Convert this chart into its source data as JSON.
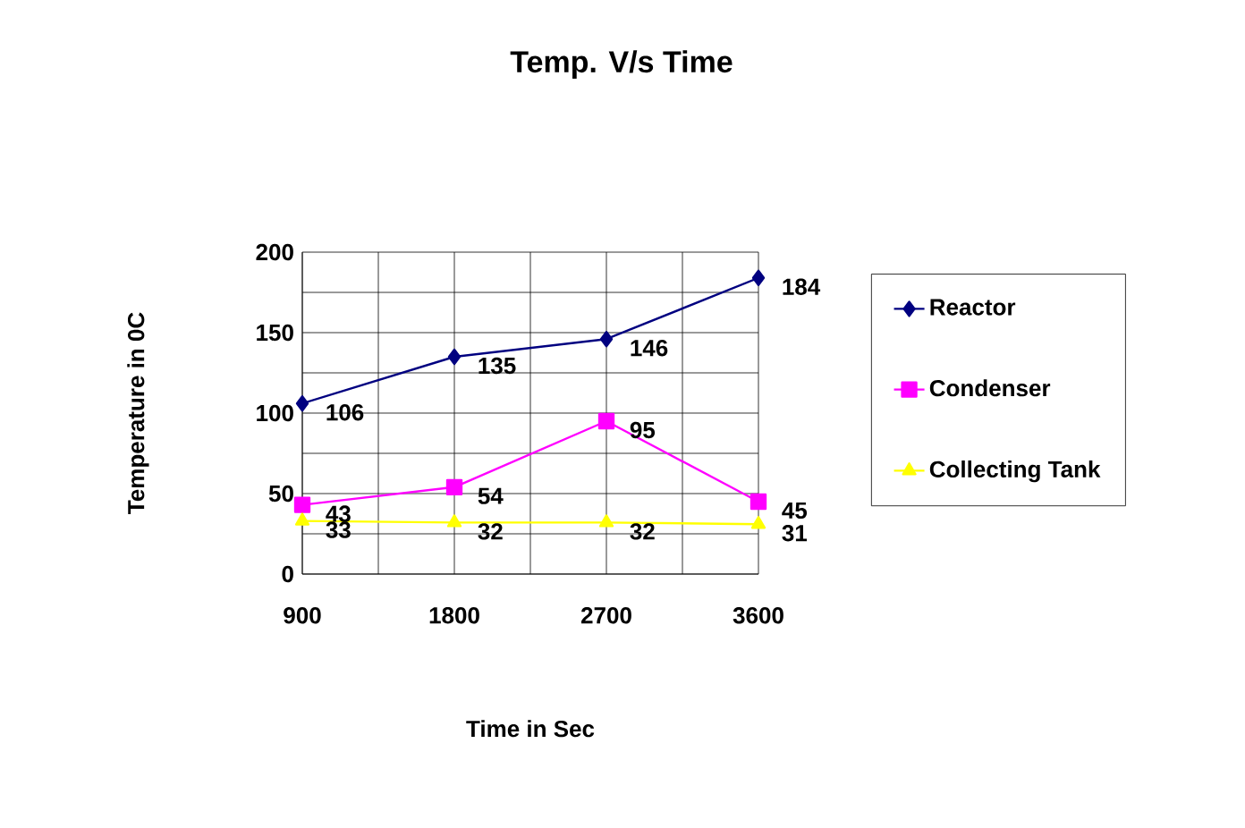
{
  "chart_data": {
    "type": "line",
    "title": "Temp. V/s Time",
    "xlabel": "Time in Sec",
    "ylabel": "Temperature in 0C",
    "categories": [
      "900",
      "1800",
      "2700",
      "3600"
    ],
    "series": [
      {
        "name": "Reactor",
        "color": "#000080",
        "marker": "diamond",
        "values": [
          106,
          135,
          146,
          184
        ]
      },
      {
        "name": "Condenser",
        "color": "#ff00ff",
        "marker": "square",
        "values": [
          43,
          54,
          95,
          45
        ]
      },
      {
        "name": "Collecting Tank",
        "color": "#ffff00",
        "marker": "triangle",
        "values": [
          33,
          32,
          32,
          31
        ]
      }
    ],
    "ylim": [
      0,
      200
    ],
    "yticks": [
      0,
      50,
      100,
      150,
      200
    ],
    "grid": true,
    "legend": "right",
    "data_labels": true
  }
}
